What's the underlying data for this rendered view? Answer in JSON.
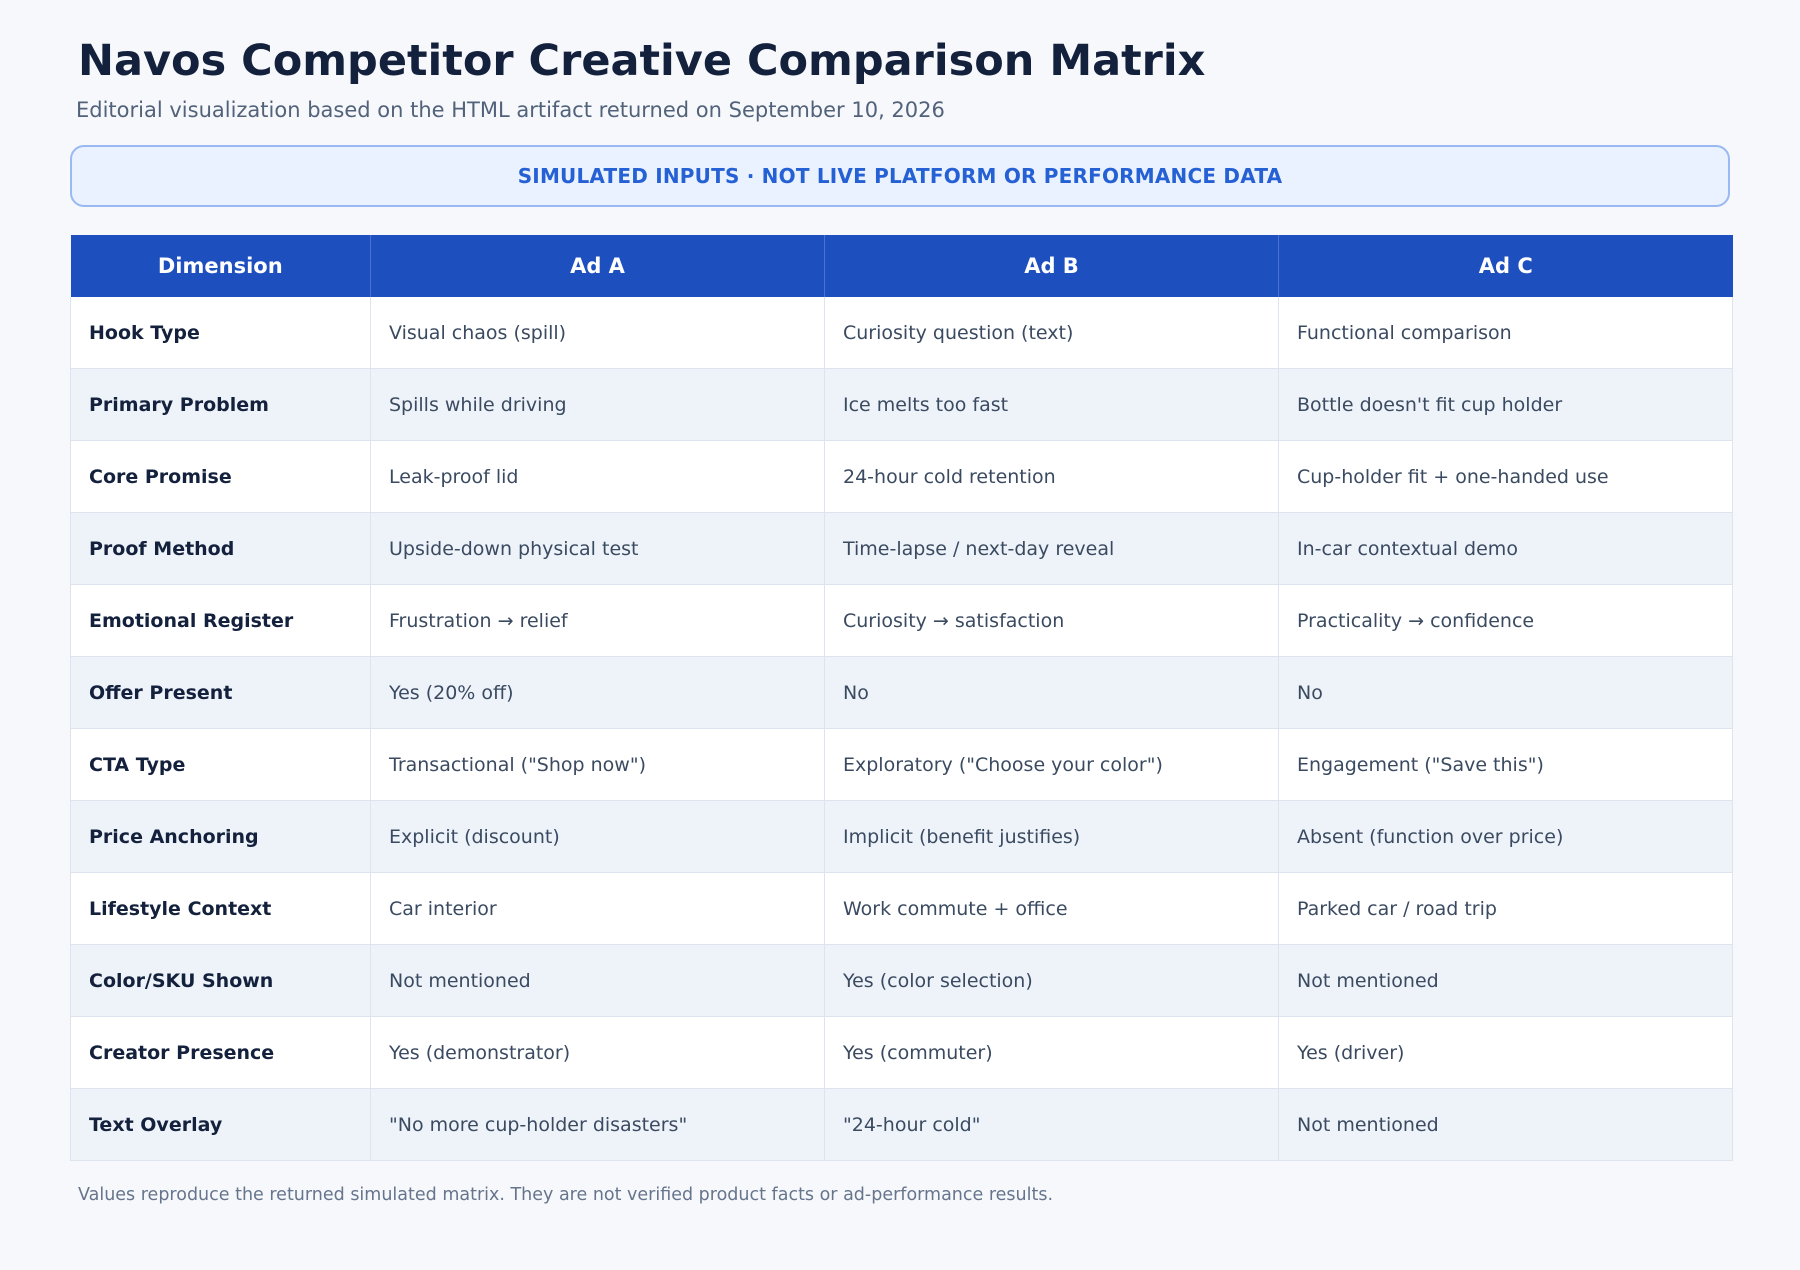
{
  "header": {
    "title": "Navos Competitor Creative Comparison Matrix",
    "subtitle": "Editorial visualization based on the HTML artifact returned on September 10, 2026"
  },
  "banner": {
    "text": "SIMULATED INPUTS · NOT LIVE PLATFORM OR PERFORMANCE DATA"
  },
  "table": {
    "headers": [
      "Dimension",
      "Ad A",
      "Ad B",
      "Ad C"
    ],
    "rows": [
      [
        "Hook Type",
        "Visual chaos (spill)",
        "Curiosity question (text)",
        "Functional comparison"
      ],
      [
        "Primary Problem",
        "Spills while driving",
        "Ice melts too fast",
        "Bottle doesn't fit cup holder"
      ],
      [
        "Core Promise",
        "Leak-proof lid",
        "24-hour cold retention",
        "Cup-holder fit + one-handed use"
      ],
      [
        "Proof Method",
        "Upside-down physical test",
        "Time-lapse / next-day reveal",
        "In-car contextual demo"
      ],
      [
        "Emotional Register",
        "Frustration → relief",
        "Curiosity → satisfaction",
        "Practicality → confidence"
      ],
      [
        "Offer Present",
        "Yes (20% off)",
        "No",
        "No"
      ],
      [
        "CTA Type",
        "Transactional (\"Shop now\")",
        "Exploratory (\"Choose your color\")",
        "Engagement (\"Save this\")"
      ],
      [
        "Price Anchoring",
        "Explicit (discount)",
        "Implicit (benefit justifies)",
        "Absent (function over price)"
      ],
      [
        "Lifestyle Context",
        "Car interior",
        "Work commute + office",
        "Parked car / road trip"
      ],
      [
        "Color/SKU Shown",
        "Not mentioned",
        "Yes (color selection)",
        "Not mentioned"
      ],
      [
        "Creator Presence",
        "Yes (demonstrator)",
        "Yes (commuter)",
        "Yes (driver)"
      ],
      [
        "Text Overlay",
        "\"No more cup-holder disasters\"",
        "\"24-hour cold\"",
        "Not mentioned"
      ]
    ]
  },
  "footnote": "Values reproduce the returned simulated matrix. They are not verified product facts or ad-performance results."
}
